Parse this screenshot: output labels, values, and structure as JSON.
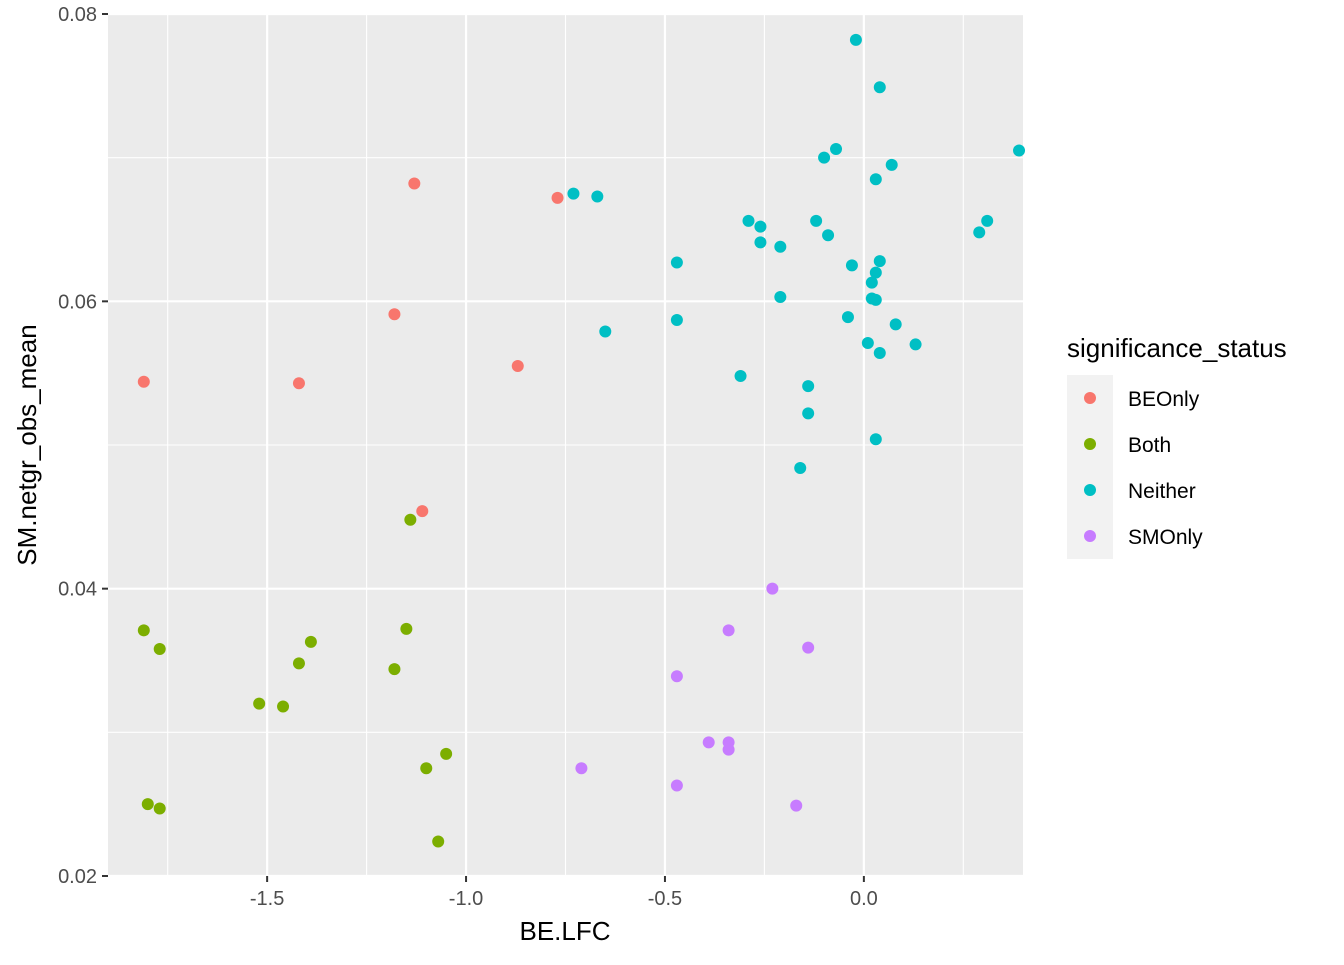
{
  "chart_data": {
    "type": "scatter",
    "xlabel": "BE.LFC",
    "ylabel": "SM.netgr_obs_mean",
    "xlim": [
      -1.9,
      0.4
    ],
    "ylim": [
      0.02,
      0.08
    ],
    "x_ticks": [
      -1.5,
      -1.0,
      -0.5,
      0.0
    ],
    "x_tick_labels": [
      "-1.5",
      "-1.0",
      "-0.5",
      "0.0"
    ],
    "y_ticks": [
      0.02,
      0.04,
      0.06,
      0.08
    ],
    "y_tick_labels": [
      "0.02",
      "0.04",
      "0.06",
      "0.08"
    ],
    "grid": true,
    "legend_title": "significance_status",
    "legend_position": "right",
    "series": [
      {
        "name": "BEOnly",
        "color": "#F8766D",
        "points": [
          [
            -1.81,
            0.0544
          ],
          [
            -1.42,
            0.0543
          ],
          [
            -1.13,
            0.0682
          ],
          [
            -1.18,
            0.0591
          ],
          [
            -1.11,
            0.0454
          ],
          [
            -0.87,
            0.0555
          ],
          [
            -0.77,
            0.0672
          ]
        ]
      },
      {
        "name": "Both",
        "color": "#7CAE00",
        "points": [
          [
            -1.81,
            0.0371
          ],
          [
            -1.77,
            0.0358
          ],
          [
            -1.8,
            0.025
          ],
          [
            -1.77,
            0.0247
          ],
          [
            -1.52,
            0.032
          ],
          [
            -1.46,
            0.0318
          ],
          [
            -1.42,
            0.0348
          ],
          [
            -1.39,
            0.0363
          ],
          [
            -1.14,
            0.0448
          ],
          [
            -1.15,
            0.0372
          ],
          [
            -1.18,
            0.0344
          ],
          [
            -1.1,
            0.0275
          ],
          [
            -1.05,
            0.0285
          ],
          [
            -1.07,
            0.0224
          ]
        ]
      },
      {
        "name": "Neither",
        "color": "#00BFC4",
        "points": [
          [
            -0.73,
            0.0675
          ],
          [
            -0.67,
            0.0673
          ],
          [
            -0.65,
            0.0579
          ],
          [
            -0.47,
            0.0627
          ],
          [
            -0.47,
            0.0587
          ],
          [
            -0.31,
            0.0548
          ],
          [
            -0.29,
            0.0656
          ],
          [
            -0.26,
            0.0652
          ],
          [
            -0.26,
            0.0641
          ],
          [
            -0.21,
            0.0638
          ],
          [
            -0.21,
            0.0603
          ],
          [
            -0.16,
            0.0484
          ],
          [
            -0.14,
            0.0541
          ],
          [
            -0.14,
            0.0522
          ],
          [
            -0.12,
            0.0656
          ],
          [
            -0.1,
            0.07
          ],
          [
            -0.09,
            0.0646
          ],
          [
            -0.07,
            0.0706
          ],
          [
            -0.04,
            0.0589
          ],
          [
            -0.03,
            0.0625
          ],
          [
            -0.02,
            0.0782
          ],
          [
            0.01,
            0.0571
          ],
          [
            0.02,
            0.0613
          ],
          [
            0.02,
            0.0602
          ],
          [
            0.03,
            0.0685
          ],
          [
            0.03,
            0.062
          ],
          [
            0.03,
            0.0601
          ],
          [
            0.04,
            0.0628
          ],
          [
            0.04,
            0.0564
          ],
          [
            0.03,
            0.0504
          ],
          [
            0.04,
            0.0749
          ],
          [
            0.07,
            0.0695
          ],
          [
            0.08,
            0.0584
          ],
          [
            0.13,
            0.057
          ],
          [
            0.29,
            0.0648
          ],
          [
            0.31,
            0.0656
          ],
          [
            0.39,
            0.0705
          ]
        ]
      },
      {
        "name": "SMOnly",
        "color": "#C77CFF",
        "points": [
          [
            -0.71,
            0.0275
          ],
          [
            -0.47,
            0.0339
          ],
          [
            -0.47,
            0.0263
          ],
          [
            -0.39,
            0.0293
          ],
          [
            -0.34,
            0.0371
          ],
          [
            -0.34,
            0.0293
          ],
          [
            -0.34,
            0.0288
          ],
          [
            -0.23,
            0.04
          ],
          [
            -0.14,
            0.0359
          ],
          [
            -0.17,
            0.0249
          ]
        ]
      }
    ]
  }
}
